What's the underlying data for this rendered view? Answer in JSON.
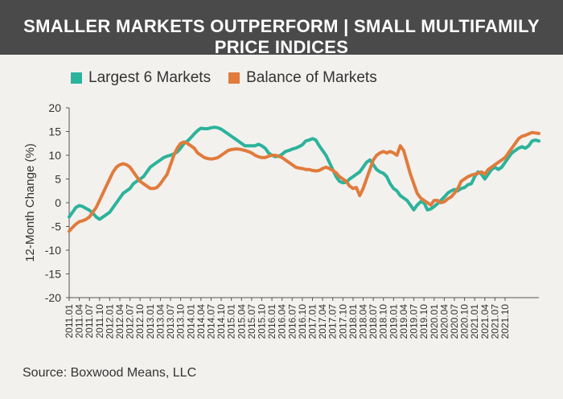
{
  "chart_data": {
    "type": "line",
    "title": "SMALLER MARKETS OUTPERFORM | SMALL MULTIFAMILY PRICE INDICES",
    "ylabel": "12-Month Change (%)",
    "xlabel": "",
    "ylim": [
      -20,
      20
    ],
    "yticks": [
      20,
      15,
      10,
      5,
      0,
      -5,
      -10,
      -15,
      -20
    ],
    "legend_position": "top-left",
    "grid": false,
    "x_tick_labels": [
      "2011.01",
      "2011.04",
      "2011.07",
      "2011.10",
      "2012.01",
      "2012.04",
      "2012.07",
      "2012.10",
      "2013.01",
      "2013.04",
      "2013.07",
      "2013.10",
      "2014.01",
      "2014.04",
      "2014.07",
      "2014.10",
      "2015.01",
      "2015.04",
      "2015.07",
      "2015.10",
      "2016.01",
      "2016.04",
      "2016.07",
      "2016.10",
      "2017.01",
      "2017.04",
      "2017.07",
      "2017.10",
      "2018.01",
      "2018.04",
      "2018.07",
      "2018.10",
      "2019.01",
      "2019.04",
      "2019.07",
      "2019.10",
      "2020.01",
      "2020.04",
      "2020.07",
      "2020.10",
      "2021.01",
      "2021.04",
      "2021.07",
      "2021.10"
    ],
    "series": [
      {
        "name": "Largest 6 Markets",
        "color": "#2cb39b",
        "points": [
          [
            0,
            -3
          ],
          [
            1,
            -2
          ],
          [
            2,
            -1
          ],
          [
            3,
            -0.6
          ],
          [
            4,
            -0.8
          ],
          [
            5,
            -1.2
          ],
          [
            6,
            -1.6
          ],
          [
            7,
            -2.2
          ],
          [
            8,
            -3
          ],
          [
            9,
            -3.5
          ],
          [
            10,
            -3
          ],
          [
            11,
            -2.5
          ],
          [
            12,
            -2
          ],
          [
            13,
            -1
          ],
          [
            14,
            0
          ],
          [
            15,
            1
          ],
          [
            16,
            2
          ],
          [
            17,
            2.5
          ],
          [
            18,
            3
          ],
          [
            19,
            4
          ],
          [
            20,
            4.5
          ],
          [
            21,
            5
          ],
          [
            22,
            5.5
          ],
          [
            23,
            6.5
          ],
          [
            24,
            7.5
          ],
          [
            25,
            8
          ],
          [
            26,
            8.5
          ],
          [
            27,
            9
          ],
          [
            28,
            9.5
          ],
          [
            29,
            9.8
          ],
          [
            30,
            10
          ],
          [
            31,
            10.3
          ],
          [
            32,
            10.7
          ],
          [
            33,
            11.5
          ],
          [
            34,
            12.5
          ],
          [
            35,
            13
          ],
          [
            36,
            13.7
          ],
          [
            37,
            14.5
          ],
          [
            38,
            15.2
          ],
          [
            39,
            15.7
          ],
          [
            40,
            15.6
          ],
          [
            41,
            15.6
          ],
          [
            42,
            15.8
          ],
          [
            43,
            15.9
          ],
          [
            44,
            15.8
          ],
          [
            45,
            15.5
          ],
          [
            46,
            15
          ],
          [
            47,
            14.5
          ],
          [
            48,
            14
          ],
          [
            49,
            13.5
          ],
          [
            50,
            13
          ],
          [
            51,
            12.5
          ],
          [
            52,
            12
          ],
          [
            53,
            12
          ],
          [
            54,
            12
          ],
          [
            55,
            12
          ],
          [
            56,
            12.3
          ],
          [
            57,
            12
          ],
          [
            58,
            11.5
          ],
          [
            59,
            10.5
          ],
          [
            60,
            10
          ],
          [
            61,
            9.7
          ],
          [
            62,
            9.8
          ],
          [
            63,
            10.2
          ],
          [
            64,
            10.8
          ],
          [
            65,
            11
          ],
          [
            66,
            11.3
          ],
          [
            67,
            11.5
          ],
          [
            68,
            11.8
          ],
          [
            69,
            12.2
          ],
          [
            70,
            13
          ],
          [
            71,
            13.2
          ],
          [
            72,
            13.5
          ],
          [
            73,
            13.2
          ],
          [
            74,
            12
          ],
          [
            75,
            11
          ],
          [
            76,
            10
          ],
          [
            77,
            8.5
          ],
          [
            78,
            7
          ],
          [
            79,
            5.5
          ],
          [
            80,
            4.5
          ],
          [
            81,
            4.2
          ],
          [
            82,
            4.3
          ],
          [
            83,
            5
          ],
          [
            84,
            5.5
          ],
          [
            85,
            6
          ],
          [
            86,
            6.5
          ],
          [
            87,
            7.5
          ],
          [
            88,
            8.5
          ],
          [
            89,
            9
          ],
          [
            90,
            8
          ],
          [
            91,
            7
          ],
          [
            92,
            6.5
          ],
          [
            93,
            6.2
          ],
          [
            94,
            5.5
          ],
          [
            95,
            4
          ],
          [
            96,
            3
          ],
          [
            97,
            2.5
          ],
          [
            98,
            1.5
          ],
          [
            99,
            1
          ],
          [
            100,
            0.5
          ],
          [
            101,
            -0.5
          ],
          [
            102,
            -1.5
          ],
          [
            103,
            -0.5
          ],
          [
            104,
            0.2
          ],
          [
            105,
            0
          ],
          [
            106,
            -1.5
          ],
          [
            107,
            -1.3
          ],
          [
            108,
            -0.8
          ],
          [
            109,
            -0.2
          ],
          [
            110,
            0.5
          ],
          [
            111,
            1.2
          ],
          [
            112,
            2
          ],
          [
            113,
            2.5
          ],
          [
            114,
            2.8
          ],
          [
            115,
            2.5
          ],
          [
            116,
            3
          ],
          [
            117,
            3.2
          ],
          [
            118,
            3.8
          ],
          [
            119,
            4
          ],
          [
            120,
            5.5
          ],
          [
            121,
            6.5
          ],
          [
            122,
            6
          ],
          [
            123,
            5
          ],
          [
            124,
            6
          ],
          [
            125,
            7
          ],
          [
            126,
            7.5
          ],
          [
            127,
            7
          ],
          [
            128,
            7.5
          ],
          [
            129,
            8.5
          ],
          [
            130,
            9.5
          ],
          [
            131,
            10.5
          ],
          [
            132,
            11
          ],
          [
            133,
            11.5
          ],
          [
            134,
            11.8
          ],
          [
            135,
            11.5
          ],
          [
            136,
            12
          ],
          [
            137,
            13
          ],
          [
            138,
            13.2
          ],
          [
            139,
            13
          ]
        ]
      },
      {
        "name": "Balance of Markets",
        "color": "#e07b3c",
        "points": [
          [
            0,
            -6
          ],
          [
            1,
            -5.2
          ],
          [
            2,
            -4.5
          ],
          [
            3,
            -4
          ],
          [
            4,
            -3.8
          ],
          [
            5,
            -3.5
          ],
          [
            6,
            -3
          ],
          [
            7,
            -2
          ],
          [
            8,
            -1
          ],
          [
            9,
            0.5
          ],
          [
            10,
            2
          ],
          [
            11,
            3.5
          ],
          [
            12,
            5
          ],
          [
            13,
            6.5
          ],
          [
            14,
            7.5
          ],
          [
            15,
            8
          ],
          [
            16,
            8.2
          ],
          [
            17,
            8
          ],
          [
            18,
            7.5
          ],
          [
            19,
            6.5
          ],
          [
            20,
            5.5
          ],
          [
            21,
            4.5
          ],
          [
            22,
            4
          ],
          [
            23,
            3.5
          ],
          [
            24,
            3
          ],
          [
            25,
            3
          ],
          [
            26,
            3.2
          ],
          [
            27,
            4
          ],
          [
            28,
            5
          ],
          [
            29,
            6
          ],
          [
            30,
            8
          ],
          [
            31,
            10
          ],
          [
            32,
            11.5
          ],
          [
            33,
            12.5
          ],
          [
            34,
            12.8
          ],
          [
            35,
            12.5
          ],
          [
            36,
            12
          ],
          [
            37,
            11.5
          ],
          [
            38,
            10.5
          ],
          [
            39,
            10
          ],
          [
            40,
            9.5
          ],
          [
            41,
            9.3
          ],
          [
            42,
            9.2
          ],
          [
            43,
            9.3
          ],
          [
            44,
            9.5
          ],
          [
            45,
            10
          ],
          [
            46,
            10.5
          ],
          [
            47,
            11
          ],
          [
            48,
            11.2
          ],
          [
            49,
            11.3
          ],
          [
            50,
            11.3
          ],
          [
            51,
            11.2
          ],
          [
            52,
            11
          ],
          [
            53,
            10.8
          ],
          [
            54,
            10.5
          ],
          [
            55,
            10
          ],
          [
            56,
            9.7
          ],
          [
            57,
            9.5
          ],
          [
            58,
            9.5
          ],
          [
            59,
            9.8
          ],
          [
            60,
            10
          ],
          [
            61,
            10
          ],
          [
            62,
            9.8
          ],
          [
            63,
            9.5
          ],
          [
            64,
            9
          ],
          [
            65,
            8.5
          ],
          [
            66,
            8
          ],
          [
            67,
            7.5
          ],
          [
            68,
            7.3
          ],
          [
            69,
            7.2
          ],
          [
            70,
            7
          ],
          [
            71,
            7
          ],
          [
            72,
            6.8
          ],
          [
            73,
            6.7
          ],
          [
            74,
            6.8
          ],
          [
            75,
            7.2
          ],
          [
            76,
            7.5
          ],
          [
            77,
            7.2
          ],
          [
            78,
            6.8
          ],
          [
            79,
            6.3
          ],
          [
            80,
            5.5
          ],
          [
            81,
            5
          ],
          [
            82,
            4.5
          ],
          [
            83,
            3.5
          ],
          [
            84,
            3
          ],
          [
            85,
            3.2
          ],
          [
            86,
            1.5
          ],
          [
            87,
            3
          ],
          [
            88,
            5
          ],
          [
            89,
            7
          ],
          [
            90,
            9
          ],
          [
            91,
            10
          ],
          [
            92,
            10.5
          ],
          [
            93,
            10.8
          ],
          [
            94,
            10.5
          ],
          [
            95,
            10.8
          ],
          [
            96,
            10.5
          ],
          [
            97,
            10
          ],
          [
            98,
            12
          ],
          [
            99,
            11
          ],
          [
            100,
            8.5
          ],
          [
            101,
            6
          ],
          [
            102,
            4
          ],
          [
            103,
            2
          ],
          [
            104,
            1
          ],
          [
            105,
            0.5
          ],
          [
            106,
            0
          ],
          [
            107,
            -0.5
          ],
          [
            108,
            0.5
          ],
          [
            109,
            0.5
          ],
          [
            110,
            0
          ],
          [
            111,
            0.2
          ],
          [
            112,
            0.8
          ],
          [
            113,
            1.2
          ],
          [
            114,
            2
          ],
          [
            115,
            3
          ],
          [
            116,
            4.5
          ],
          [
            117,
            5
          ],
          [
            118,
            5.5
          ],
          [
            119,
            5.8
          ],
          [
            120,
            6
          ],
          [
            121,
            6.2
          ],
          [
            122,
            6.5
          ],
          [
            123,
            6
          ],
          [
            124,
            7
          ],
          [
            125,
            7.5
          ],
          [
            126,
            8
          ],
          [
            127,
            8.5
          ],
          [
            128,
            9
          ],
          [
            129,
            9.5
          ],
          [
            130,
            10.5
          ],
          [
            131,
            11.5
          ],
          [
            132,
            12.5
          ],
          [
            133,
            13.5
          ],
          [
            134,
            14
          ],
          [
            135,
            14.2
          ],
          [
            136,
            14.5
          ],
          [
            137,
            14.8
          ],
          [
            138,
            14.7
          ],
          [
            139,
            14.6
          ]
        ]
      }
    ]
  },
  "source": "Source: Boxwood Means, LLC"
}
